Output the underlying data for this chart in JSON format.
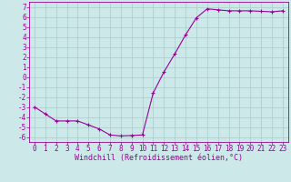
{
  "x": [
    0,
    1,
    2,
    3,
    4,
    5,
    6,
    7,
    8,
    9,
    10,
    11,
    12,
    13,
    14,
    15,
    16,
    17,
    18,
    19,
    20,
    21,
    22,
    23
  ],
  "y": [
    -3.0,
    -3.7,
    -4.4,
    -4.4,
    -4.4,
    -4.8,
    -5.2,
    -5.8,
    -5.9,
    -5.85,
    -5.8,
    -1.6,
    0.5,
    2.3,
    4.2,
    5.9,
    6.8,
    6.7,
    6.6,
    6.6,
    6.6,
    6.55,
    6.5,
    6.6
  ],
  "line_color": "#990099",
  "marker": "+",
  "marker_size": 3,
  "bg_color": "#cce8e8",
  "grid_color": "#aacccc",
  "xlabel": "Windchill (Refroidissement éolien,°C)",
  "xlim": [
    -0.5,
    23.5
  ],
  "ylim": [
    -6.5,
    7.5
  ],
  "xticks": [
    0,
    1,
    2,
    3,
    4,
    5,
    6,
    7,
    8,
    9,
    10,
    11,
    12,
    13,
    14,
    15,
    16,
    17,
    18,
    19,
    20,
    21,
    22,
    23
  ],
  "yticks": [
    -6,
    -5,
    -4,
    -3,
    -2,
    -1,
    0,
    1,
    2,
    3,
    4,
    5,
    6,
    7
  ],
  "tick_fontsize": 5.5,
  "label_fontsize": 6.0
}
